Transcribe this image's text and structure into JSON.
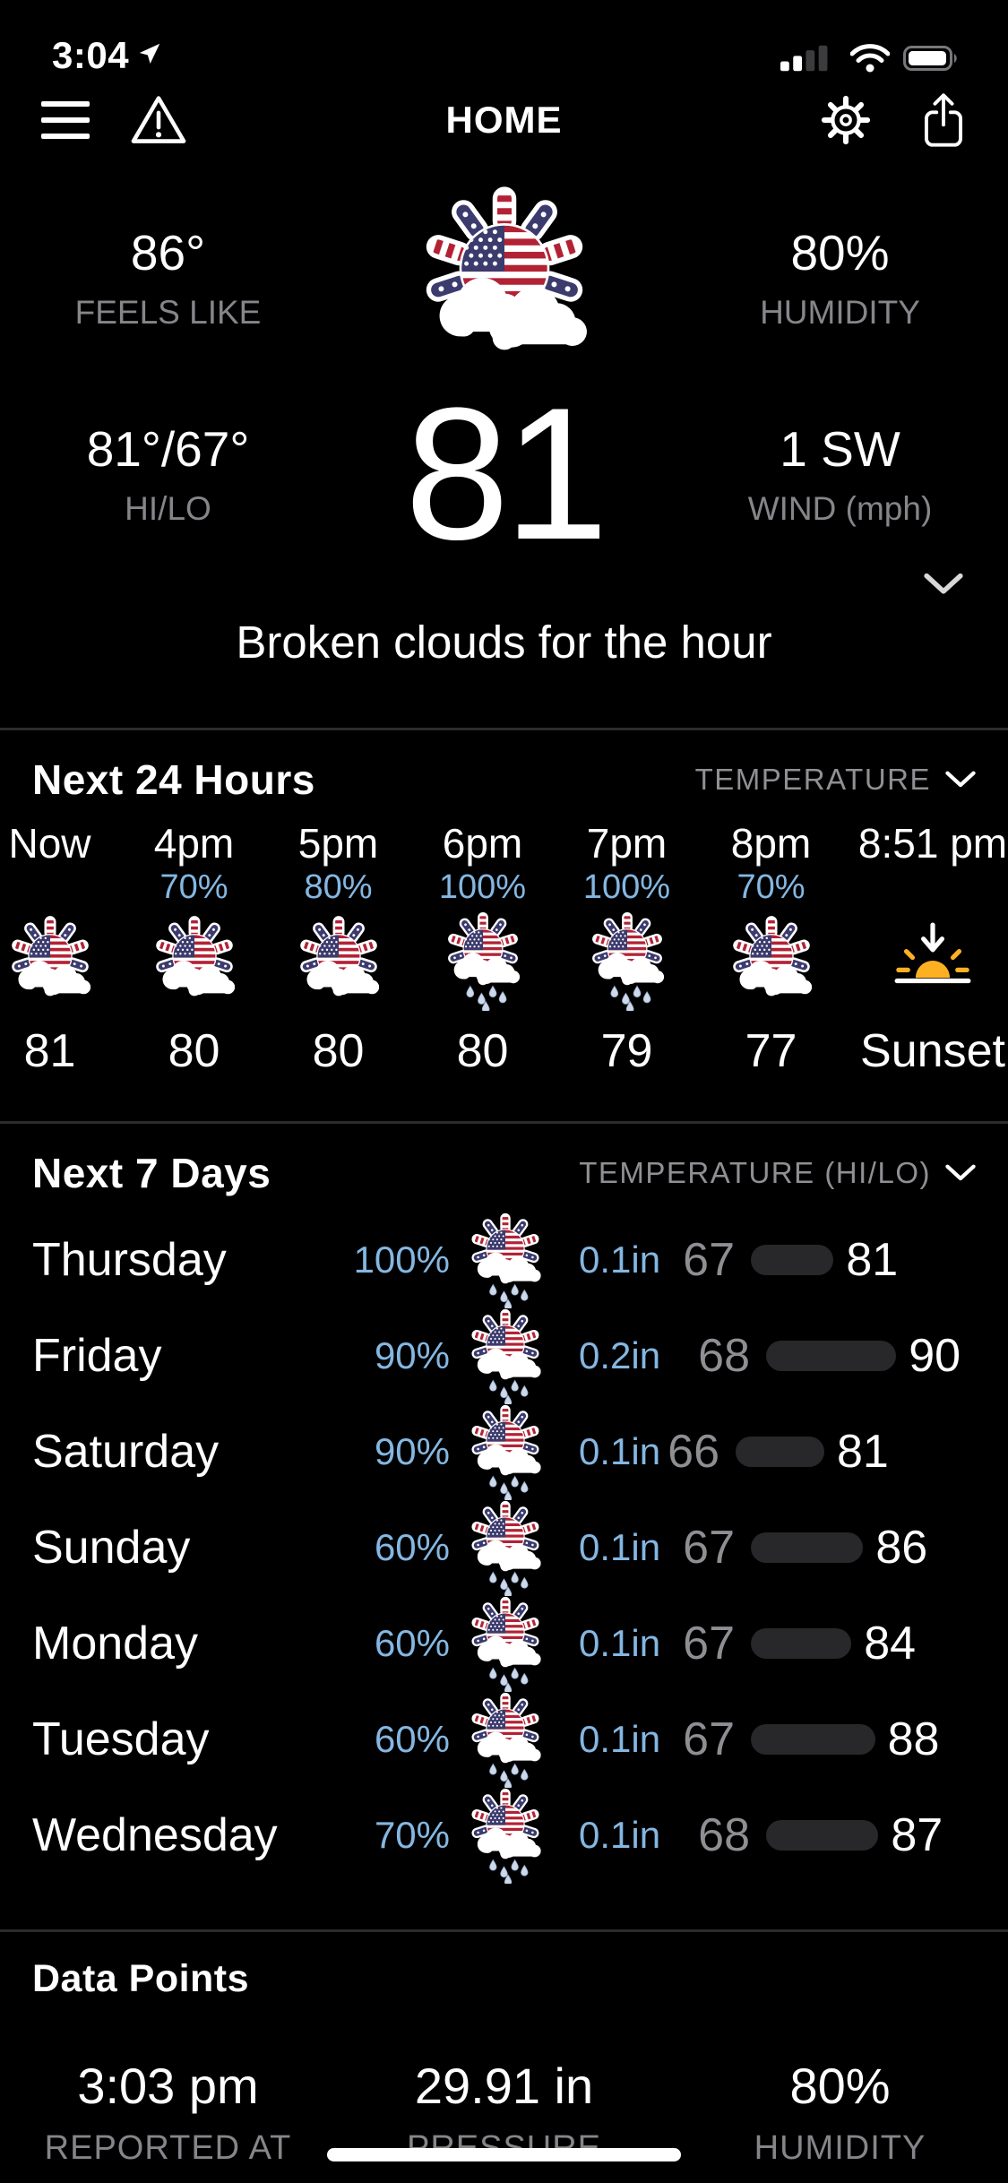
{
  "status_bar": {
    "time": "3:04"
  },
  "header": {
    "title": "HOME"
  },
  "current": {
    "feels_like": "86°",
    "feels_like_label": "FEELS LIKE",
    "humidity": "80%",
    "humidity_label": "HUMIDITY",
    "hilo": "81°/67°",
    "hilo_label": "HI/LO",
    "temp": "81",
    "wind": "1 SW",
    "wind_label": "WIND (mph)",
    "condition": "Broken clouds for the hour",
    "icon_ref": "#i-cloudy"
  },
  "next24": {
    "title": "Next 24 Hours",
    "dropdown": "TEMPERATURE",
    "hours": [
      {
        "label": "Now",
        "pop": "",
        "temp": "81",
        "icon_ref": "#i-cloudy"
      },
      {
        "label": "4pm",
        "pop": "70%",
        "temp": "80",
        "icon_ref": "#i-cloudy"
      },
      {
        "label": "5pm",
        "pop": "80%",
        "temp": "80",
        "icon_ref": "#i-cloudy"
      },
      {
        "label": "6pm",
        "pop": "100%",
        "temp": "80",
        "icon_ref": "#i-rain"
      },
      {
        "label": "7pm",
        "pop": "100%",
        "temp": "79",
        "icon_ref": "#i-rain"
      },
      {
        "label": "8pm",
        "pop": "70%",
        "temp": "77",
        "icon_ref": "#i-cloudy"
      },
      {
        "label": "8:51 pm",
        "pop": "",
        "temp": "Sunset",
        "icon_ref": "#i-sunset"
      }
    ]
  },
  "next7": {
    "title": "Next 7 Days",
    "dropdown": "TEMPERATURE (HI/LO)",
    "days": [
      {
        "day": "Thursday",
        "pop": "100%",
        "precip": "0.1in",
        "lo": 67,
        "hi": 81,
        "icon_ref": "#i-rain"
      },
      {
        "day": "Friday",
        "pop": "90%",
        "precip": "0.2in",
        "lo": 68,
        "hi": 90,
        "icon_ref": "#i-rain"
      },
      {
        "day": "Saturday",
        "pop": "90%",
        "precip": "0.1in",
        "lo": 66,
        "hi": 81,
        "icon_ref": "#i-rain"
      },
      {
        "day": "Sunday",
        "pop": "60%",
        "precip": "0.1in",
        "lo": 67,
        "hi": 86,
        "icon_ref": "#i-rain"
      },
      {
        "day": "Monday",
        "pop": "60%",
        "precip": "0.1in",
        "lo": 67,
        "hi": 84,
        "icon_ref": "#i-rain"
      },
      {
        "day": "Tuesday",
        "pop": "60%",
        "precip": "0.1in",
        "lo": 67,
        "hi": 88,
        "icon_ref": "#i-rain"
      },
      {
        "day": "Wednesday",
        "pop": "70%",
        "precip": "0.1in",
        "lo": 68,
        "hi": 87,
        "icon_ref": "#i-rain"
      }
    ]
  },
  "data_points": {
    "title": "Data Points",
    "items": [
      {
        "value": "3:03 pm",
        "label": "REPORTED AT"
      },
      {
        "value": "29.91 in",
        "label": "PRESSURE"
      },
      {
        "value": "80%",
        "label": "HUMIDITY"
      }
    ]
  },
  "colors": {
    "accent_blue": "#84b7e2",
    "sun_amber": "#FDB022",
    "flag_red": "#B22234",
    "flag_navy": "#3C3B6E",
    "bar_gray": "#28282b"
  }
}
